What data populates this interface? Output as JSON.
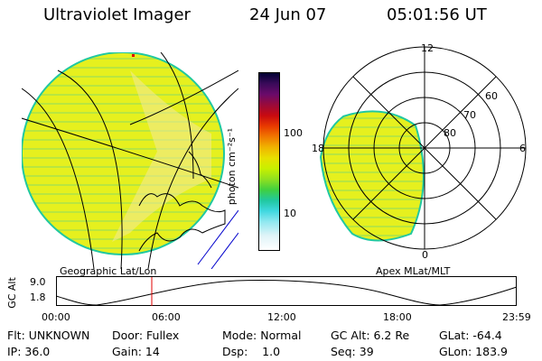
{
  "header": {
    "instrument": "Ultraviolet Imager",
    "date": "24 Jun 07",
    "time": "05:01:56 UT"
  },
  "left_panel": {
    "caption": "Geographic Lat/Lon"
  },
  "right_panel": {
    "caption": "Apex MLat/MLT",
    "mlt_labels": {
      "top": "12",
      "left": "18",
      "right": "6",
      "bottom": "0"
    },
    "lat_labels": [
      "60",
      "70",
      "80"
    ]
  },
  "colorbar": {
    "unit_label": "photon cm⁻²s⁻¹",
    "ticks": [
      "100",
      "10"
    ],
    "colors": [
      "#000033",
      "#3a0a5a",
      "#6a0a6a",
      "#9a0a3a",
      "#c80a10",
      "#e83a00",
      "#f07800",
      "#f0b400",
      "#e8e000",
      "#c8f000",
      "#90e020",
      "#40d040",
      "#20c8a0",
      "#40d8e0",
      "#90e8f0",
      "#e0f4f8",
      "#ffffff"
    ]
  },
  "altitude_plot": {
    "ylabel": "GC Alt",
    "yticks": [
      "9.0",
      "1.8"
    ],
    "xticks": [
      "00:00",
      "06:00",
      "12:00",
      "18:00",
      "23:59"
    ]
  },
  "info": {
    "row1": [
      "Flt: UNKNOWN",
      "Door: Fullex",
      "Mode: Normal",
      "GC Alt: 6.2 Re",
      "GLat: -64.4"
    ],
    "row2": [
      "IP: 36.0",
      "Gain: 14",
      "Dsp:    1.0",
      "Seq: 39",
      "GLon: 183.9"
    ]
  }
}
